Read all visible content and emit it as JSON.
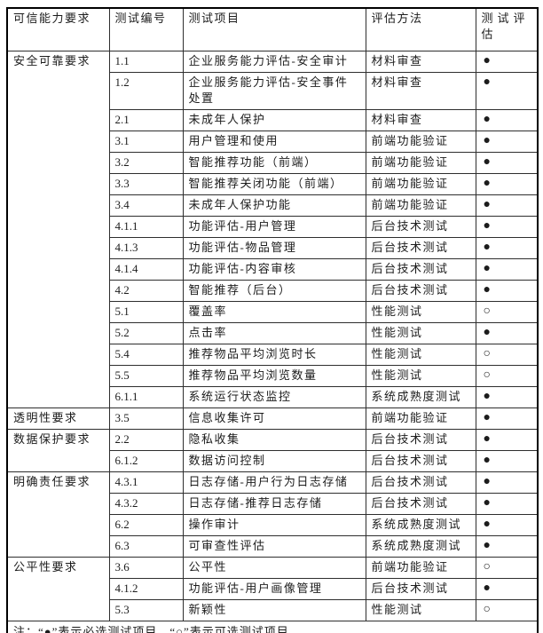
{
  "table": {
    "headers": [
      "可信能力要求",
      "测试编号",
      "测试项目",
      "评估方法",
      "测试评估"
    ],
    "legend": {
      "required_mark": "●",
      "optional_mark": "○"
    },
    "colors": {
      "border_outer": "#000000",
      "border_inner": "#2e2e2e",
      "text": "#1c1c1c",
      "background": "#ffffff"
    },
    "groups": [
      {
        "requirement": "安全可靠要求",
        "rows": [
          {
            "id": "1.1",
            "item": "企业服务能力评估-安全审计",
            "method": "材料审查",
            "mark": "●"
          },
          {
            "id": "1.2",
            "item": "企业服务能力评估-安全事件处置",
            "method": "材料审查",
            "mark": "●"
          },
          {
            "id": "2.1",
            "item": "未成年人保护",
            "method": "材料审查",
            "mark": "●"
          },
          {
            "id": "3.1",
            "item": "用户管理和使用",
            "method": "前端功能验证",
            "mark": "●"
          },
          {
            "id": "3.2",
            "item": "智能推荐功能（前端）",
            "method": "前端功能验证",
            "mark": "●"
          },
          {
            "id": "3.3",
            "item": "智能推荐关闭功能（前端）",
            "method": "前端功能验证",
            "mark": "●"
          },
          {
            "id": "3.4",
            "item": "未成年人保护功能",
            "method": "前端功能验证",
            "mark": "●"
          },
          {
            "id": "4.1.1",
            "item": "功能评估-用户管理",
            "method": "后台技术测试",
            "mark": "●"
          },
          {
            "id": "4.1.3",
            "item": "功能评估-物品管理",
            "method": "后台技术测试",
            "mark": "●"
          },
          {
            "id": "4.1.4",
            "item": "功能评估-内容审核",
            "method": "后台技术测试",
            "mark": "●"
          },
          {
            "id": "4.2",
            "item": "智能推荐（后台）",
            "method": "后台技术测试",
            "mark": "●"
          },
          {
            "id": "5.1",
            "item": "覆盖率",
            "method": "性能测试",
            "mark": "○"
          },
          {
            "id": "5.2",
            "item": "点击率",
            "method": "性能测试",
            "mark": "●"
          },
          {
            "id": "5.4",
            "item": "推荐物品平均浏览时长",
            "method": "性能测试",
            "mark": "○"
          },
          {
            "id": "5.5",
            "item": "推荐物品平均浏览数量",
            "method": "性能测试",
            "mark": "○"
          },
          {
            "id": "6.1.1",
            "item": "系统运行状态监控",
            "method": "系统成熟度测试",
            "mark": "●"
          }
        ]
      },
      {
        "requirement": "透明性要求",
        "rows": [
          {
            "id": "3.5",
            "item": "信息收集许可",
            "method": "前端功能验证",
            "mark": "●"
          }
        ]
      },
      {
        "requirement": "数据保护要求",
        "rows": [
          {
            "id": "2.2",
            "item": "隐私收集",
            "method": "后台技术测试",
            "mark": "●"
          },
          {
            "id": "6.1.2",
            "item": "数据访问控制",
            "method": "后台技术测试",
            "mark": "●"
          }
        ]
      },
      {
        "requirement": "明确责任要求",
        "rows": [
          {
            "id": "4.3.1",
            "item": "日志存储-用户行为日志存储",
            "method": "后台技术测试",
            "mark": "●"
          },
          {
            "id": "4.3.2",
            "item": "日志存储-推荐日志存储",
            "method": "后台技术测试",
            "mark": "●"
          },
          {
            "id": "6.2",
            "item": "操作审计",
            "method": "系统成熟度测试",
            "mark": "●"
          },
          {
            "id": "6.3",
            "item": "可审查性评估",
            "method": "系统成熟度测试",
            "mark": "●"
          }
        ]
      },
      {
        "requirement": "公平性要求",
        "rows": [
          {
            "id": "3.6",
            "item": "公平性",
            "method": "前端功能验证",
            "mark": "○"
          },
          {
            "id": "4.1.2",
            "item": "功能评估-用户画像管理",
            "method": "后台技术测试",
            "mark": "●"
          },
          {
            "id": "5.3",
            "item": "新颖性",
            "method": "性能测试",
            "mark": "○"
          }
        ]
      }
    ],
    "note": "注：“●”表示必选测试项目，“○”表示可选测试项目"
  }
}
